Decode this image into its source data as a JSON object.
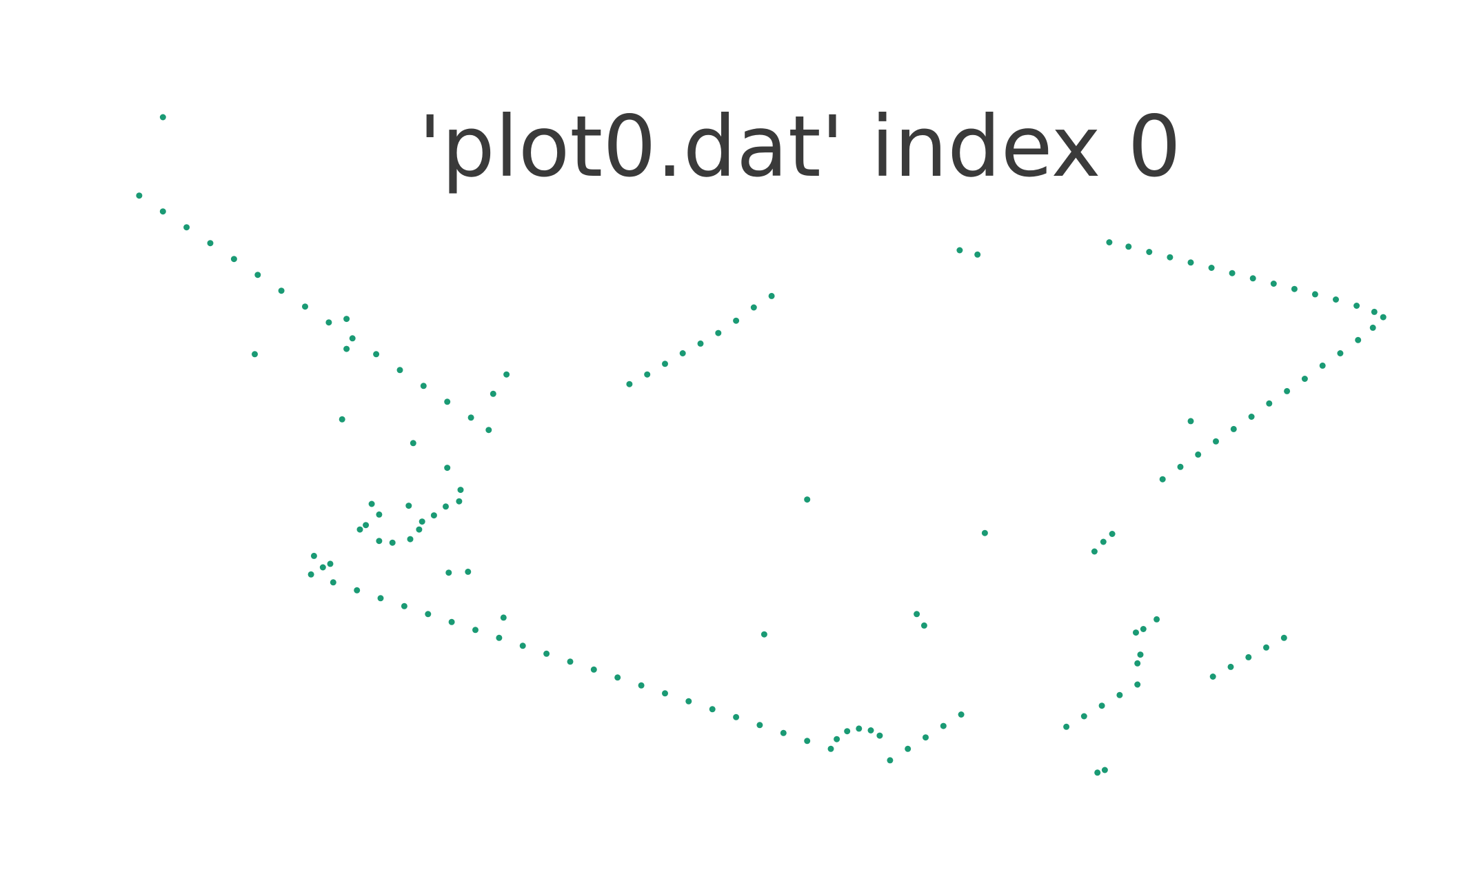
{
  "chart_data": {
    "type": "scatter",
    "title": "'plot0.dat' index 0",
    "xlabel": "",
    "ylabel": "",
    "grid": false,
    "axes_visible": false,
    "point_color": "#1a9a74",
    "series": [
      {
        "points": [
          [
            0.11,
            0.867
          ],
          [
            0.094,
            0.778
          ],
          [
            0.11,
            0.76
          ],
          [
            0.126,
            0.742
          ],
          [
            0.142,
            0.724
          ],
          [
            0.158,
            0.706
          ],
          [
            0.174,
            0.688
          ],
          [
            0.19,
            0.67
          ],
          [
            0.206,
            0.652
          ],
          [
            0.222,
            0.634
          ],
          [
            0.238,
            0.616
          ],
          [
            0.254,
            0.598
          ],
          [
            0.27,
            0.58
          ],
          [
            0.286,
            0.562
          ],
          [
            0.302,
            0.544
          ],
          [
            0.318,
            0.526
          ],
          [
            0.33,
            0.512
          ],
          [
            0.333,
            0.553
          ],
          [
            0.342,
            0.575
          ],
          [
            0.172,
            0.598
          ],
          [
            0.234,
            0.604
          ],
          [
            0.234,
            0.638
          ],
          [
            0.231,
            0.524
          ],
          [
            0.279,
            0.497
          ],
          [
            0.302,
            0.469
          ],
          [
            0.311,
            0.444
          ],
          [
            0.31,
            0.431
          ],
          [
            0.301,
            0.425
          ],
          [
            0.293,
            0.415
          ],
          [
            0.285,
            0.408
          ],
          [
            0.251,
            0.428
          ],
          [
            0.256,
            0.416
          ],
          [
            0.247,
            0.404
          ],
          [
            0.243,
            0.399
          ],
          [
            0.276,
            0.426
          ],
          [
            0.283,
            0.399
          ],
          [
            0.277,
            0.388
          ],
          [
            0.256,
            0.386
          ],
          [
            0.265,
            0.384
          ],
          [
            0.212,
            0.369
          ],
          [
            0.223,
            0.36
          ],
          [
            0.218,
            0.356
          ],
          [
            0.303,
            0.35
          ],
          [
            0.316,
            0.351
          ],
          [
            0.21,
            0.348
          ],
          [
            0.225,
            0.339
          ],
          [
            0.241,
            0.33
          ],
          [
            0.257,
            0.321
          ],
          [
            0.273,
            0.312
          ],
          [
            0.289,
            0.303
          ],
          [
            0.305,
            0.294
          ],
          [
            0.321,
            0.285
          ],
          [
            0.337,
            0.276
          ],
          [
            0.353,
            0.267
          ],
          [
            0.369,
            0.258
          ],
          [
            0.385,
            0.249
          ],
          [
            0.401,
            0.24
          ],
          [
            0.417,
            0.231
          ],
          [
            0.433,
            0.222
          ],
          [
            0.449,
            0.213
          ],
          [
            0.465,
            0.204
          ],
          [
            0.481,
            0.195
          ],
          [
            0.497,
            0.186
          ],
          [
            0.513,
            0.177
          ],
          [
            0.529,
            0.168
          ],
          [
            0.545,
            0.159
          ],
          [
            0.561,
            0.15
          ],
          [
            0.34,
            0.299
          ],
          [
            0.516,
            0.28
          ],
          [
            0.545,
            0.433
          ],
          [
            0.565,
            0.161
          ],
          [
            0.572,
            0.17
          ],
          [
            0.58,
            0.173
          ],
          [
            0.588,
            0.171
          ],
          [
            0.594,
            0.165
          ],
          [
            0.601,
            0.137
          ],
          [
            0.613,
            0.15
          ],
          [
            0.625,
            0.163
          ],
          [
            0.637,
            0.176
          ],
          [
            0.649,
            0.189
          ],
          [
            0.619,
            0.303
          ],
          [
            0.624,
            0.29
          ],
          [
            0.665,
            0.395
          ],
          [
            0.425,
            0.564
          ],
          [
            0.437,
            0.575
          ],
          [
            0.449,
            0.587
          ],
          [
            0.461,
            0.599
          ],
          [
            0.473,
            0.61
          ],
          [
            0.485,
            0.622
          ],
          [
            0.497,
            0.636
          ],
          [
            0.509,
            0.651
          ],
          [
            0.521,
            0.664
          ],
          [
            0.648,
            0.716
          ],
          [
            0.66,
            0.711
          ],
          [
            0.749,
            0.725
          ],
          [
            0.762,
            0.72
          ],
          [
            0.776,
            0.714
          ],
          [
            0.79,
            0.708
          ],
          [
            0.804,
            0.702
          ],
          [
            0.818,
            0.696
          ],
          [
            0.832,
            0.69
          ],
          [
            0.846,
            0.684
          ],
          [
            0.86,
            0.678
          ],
          [
            0.874,
            0.672
          ],
          [
            0.888,
            0.666
          ],
          [
            0.902,
            0.66
          ],
          [
            0.916,
            0.653
          ],
          [
            0.928,
            0.646
          ],
          [
            0.934,
            0.64
          ],
          [
            0.927,
            0.628
          ],
          [
            0.917,
            0.614
          ],
          [
            0.905,
            0.599
          ],
          [
            0.893,
            0.585
          ],
          [
            0.881,
            0.57
          ],
          [
            0.869,
            0.556
          ],
          [
            0.857,
            0.542
          ],
          [
            0.845,
            0.527
          ],
          [
            0.833,
            0.513
          ],
          [
            0.821,
            0.499
          ],
          [
            0.809,
            0.484
          ],
          [
            0.797,
            0.47
          ],
          [
            0.785,
            0.456
          ],
          [
            0.804,
            0.522
          ],
          [
            0.739,
            0.374
          ],
          [
            0.745,
            0.385
          ],
          [
            0.751,
            0.394
          ],
          [
            0.781,
            0.297
          ],
          [
            0.772,
            0.286
          ],
          [
            0.767,
            0.282
          ],
          [
            0.72,
            0.175
          ],
          [
            0.732,
            0.187
          ],
          [
            0.744,
            0.199
          ],
          [
            0.756,
            0.211
          ],
          [
            0.768,
            0.223
          ],
          [
            0.768,
            0.247
          ],
          [
            0.77,
            0.257
          ],
          [
            0.741,
            0.123
          ],
          [
            0.746,
            0.126
          ],
          [
            0.819,
            0.232
          ],
          [
            0.831,
            0.243
          ],
          [
            0.843,
            0.254
          ],
          [
            0.855,
            0.265
          ],
          [
            0.867,
            0.276
          ]
        ]
      }
    ]
  }
}
